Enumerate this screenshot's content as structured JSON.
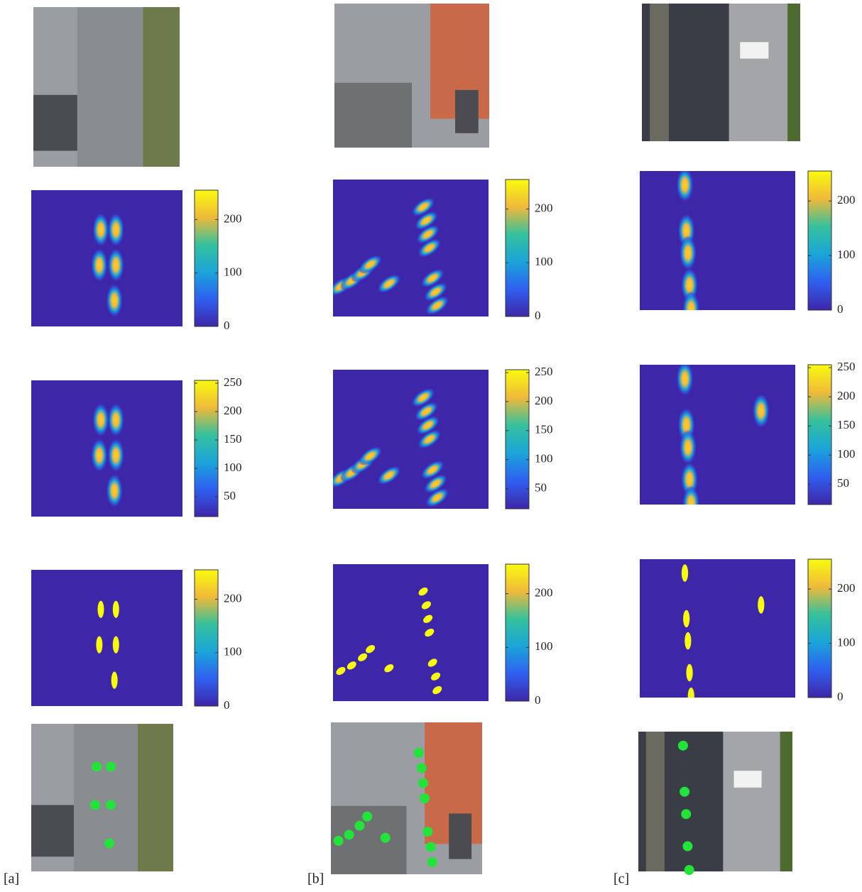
{
  "panels": [
    {
      "label": "[a]",
      "colorbars": [
        {
          "lim": [
            0,
            255
          ],
          "ticks": [
            0,
            100,
            200
          ]
        },
        {
          "lim": [
            15,
            255
          ],
          "ticks": [
            50,
            100,
            150,
            200,
            250
          ]
        },
        {
          "lim": [
            0,
            255
          ],
          "ticks": [
            0,
            100,
            200
          ]
        }
      ]
    },
    {
      "label": "[b]",
      "colorbars": [
        {
          "lim": [
            0,
            255
          ],
          "ticks": [
            0,
            100,
            200
          ]
        },
        {
          "lim": [
            15,
            255
          ],
          "ticks": [
            50,
            100,
            150,
            200,
            250
          ]
        },
        {
          "lim": [
            0,
            255
          ],
          "ticks": [
            0,
            100,
            200
          ]
        }
      ]
    },
    {
      "label": "[c]",
      "colorbars": [
        {
          "lim": [
            0,
            255
          ],
          "ticks": [
            0,
            100,
            200
          ]
        },
        {
          "lim": [
            15,
            255
          ],
          "ticks": [
            50,
            100,
            150,
            200,
            250
          ]
        },
        {
          "lim": [
            0,
            255
          ],
          "ticks": [
            0,
            100,
            200
          ]
        }
      ]
    }
  ]
}
